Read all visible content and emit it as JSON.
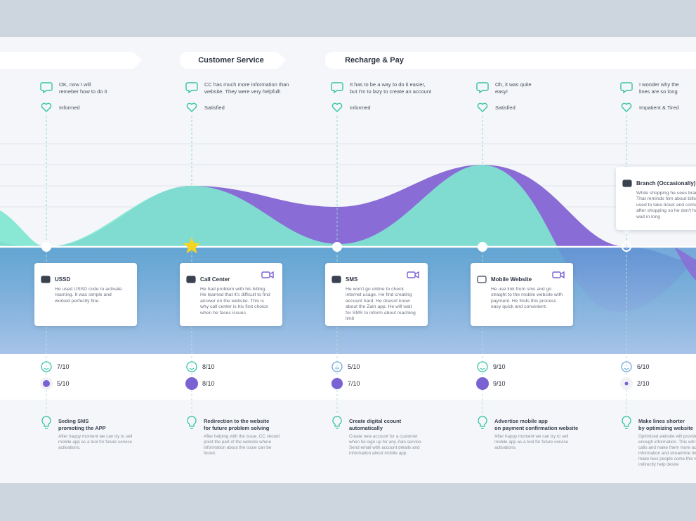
{
  "stages": [
    "Customer Service",
    "Recharge & Pay"
  ],
  "columns": [
    {
      "quote": "OK, now I will\nremeber how to do it",
      "emotion": "Informed",
      "touchpoint": {
        "title": "USSD",
        "text": "He used USSD code to activate roaming. It was simple and worked perfectly fine."
      },
      "ratings": [
        "7/10",
        "5/10"
      ],
      "idea": {
        "title": "Seding SMS\npromoting the APP",
        "text": "After happy moment we can try to sell mobile app as a tool for future service activations."
      }
    },
    {
      "quote": "CC has much more information than\nwebsite. They were very helpfull!",
      "emotion": "Satisfied",
      "touchpoint": {
        "title": "Call Center",
        "text": "He had problem with his billing. He learned that it's difficult to find answer on the website. This is why call center is his first choice when he faces issues"
      },
      "ratings": [
        "8/10",
        "8/10"
      ],
      "idea": {
        "title": "Redirection to the website\nfor future problem solving",
        "text": "After helping with the issue, CC should point the part of the website where information about the issue can be found."
      }
    },
    {
      "quote": "It has to be a way to do it easier,\nbut I'm to lazy to create an account",
      "emotion": "Informed",
      "touchpoint": {
        "title": "SMS",
        "text": "He won't go online to check internet usage. He find creating account hard. He doesnt know about the Zain app. He will wait for SMS to inform about reaching limit"
      },
      "ratings": [
        "5/10",
        "7/10"
      ],
      "idea": {
        "title": "Create digital ccount\nautomatically",
        "text": "Create new account for a customer when he sign up for any Zain service. Send email with account details and information about mobile app."
      }
    },
    {
      "quote": "Oh, it was quite\neasy!",
      "emotion": "Satisfied",
      "touchpoint": {
        "title": "Mobile Website",
        "text": "He use link from sms and go straight to the mobile website with payment. He finds this process easy quick and convinient."
      },
      "ratings": [
        "9/10",
        "9/10"
      ],
      "idea": {
        "title": "Advertise mobile app\non payment confirmation website",
        "text": "After happy moment we can try to sell mobile app as a tool for future service activations."
      }
    },
    {
      "quote": "I wonder why the\nlines are so long",
      "emotion": "Impatient & Tired",
      "touchpoint": {
        "title": "Branch (Occasionally)",
        "text": "While shopping he sees branch. That reminds him about bills. He is used to take ticket and come back after shopping so he don't have to wait in long"
      },
      "ratings": [
        "6/10",
        "2/10"
      ],
      "idea": {
        "title": "Make lines shorter\nby optimizing website",
        "text": "Optimized website will provide with enough information. This will lower CC calls and make them more access to information and streamline time will make less people come this will indirectly help desire"
      }
    }
  ]
}
